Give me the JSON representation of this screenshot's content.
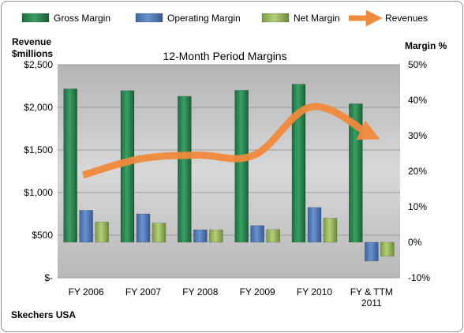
{
  "chart_data": {
    "type": "bar",
    "title": "12-Month Period Margins",
    "company": "Skechers USA",
    "left_axis_label_line1": "Revenue",
    "left_axis_label_line2": "$millions",
    "right_axis_label": "Margin %",
    "categories": [
      "FY 2006",
      "FY 2007",
      "FY 2008",
      "FY 2009",
      "FY 2010",
      "FY & TTM 2011"
    ],
    "y_left_ticks": [
      "$-",
      "$500",
      "$1,000",
      "$1,500",
      "$2,000",
      "$2,500"
    ],
    "y_left_range": [
      0,
      2500
    ],
    "y_right_ticks": [
      "-10%",
      "0%",
      "10%",
      "20%",
      "30%",
      "40%",
      "50%"
    ],
    "y_right_range": [
      -10,
      50
    ],
    "series": [
      {
        "name": "Gross Margin",
        "axis": "right",
        "values": [
          43.2,
          42.7,
          41.1,
          42.8,
          44.5,
          39.0
        ],
        "color": "#2e8b57"
      },
      {
        "name": "Operating Margin",
        "axis": "right",
        "values": [
          9.0,
          8.0,
          3.5,
          4.7,
          9.8,
          -5.3
        ],
        "color": "#4f81bd"
      },
      {
        "name": "Net Margin",
        "axis": "right",
        "values": [
          5.7,
          5.4,
          3.5,
          3.6,
          6.8,
          -3.9
        ],
        "color": "#9bbb59"
      },
      {
        "name": "Revenues",
        "axis": "left",
        "type": "line",
        "values": [
          1205,
          1395,
          1440,
          1440,
          2005,
          1690
        ],
        "color": "#f79646"
      }
    ],
    "grid": true,
    "legend_position": "top"
  }
}
